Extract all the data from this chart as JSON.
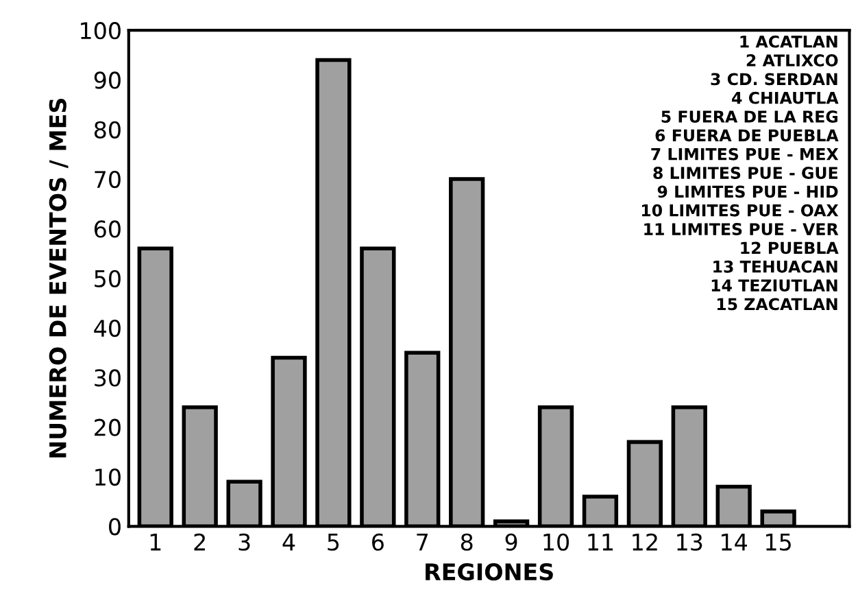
{
  "chart_data": {
    "type": "bar",
    "xlabel": "REGIONES",
    "ylabel": "NUMERO DE EVENTOS / MES",
    "categories": [
      "1",
      "2",
      "3",
      "4",
      "5",
      "6",
      "7",
      "8",
      "9",
      "10",
      "11",
      "12",
      "13",
      "14",
      "15"
    ],
    "values": [
      56,
      24,
      9,
      34,
      94,
      56,
      35,
      70,
      1,
      24,
      6,
      17,
      24,
      8,
      3
    ],
    "color": "#a0a0a0",
    "ylim": [
      0,
      100
    ],
    "yticks": [
      0,
      10,
      20,
      30,
      40,
      50,
      60,
      70,
      80,
      90,
      100
    ],
    "grid": false,
    "annotations": [
      "1 ACATLAN\n2 ATLIXCO\n3 CD. SERDAN\n4 CHIAUTLA\n5 FUERA DE LA REG\n6 FUERA DE PUEBLA\n7 LIMITES PUE - MEX\n8 LIMITES PUE - GUE\n9 LIMITES PUE - HID\n10 LIMITES PUE - OAX\n11 LIMITES PUE - VER\n12 PUEBLA\n13 TEHUACAN\n14 TEZIUTLAN\n15 ZACATLAN"
    ]
  }
}
